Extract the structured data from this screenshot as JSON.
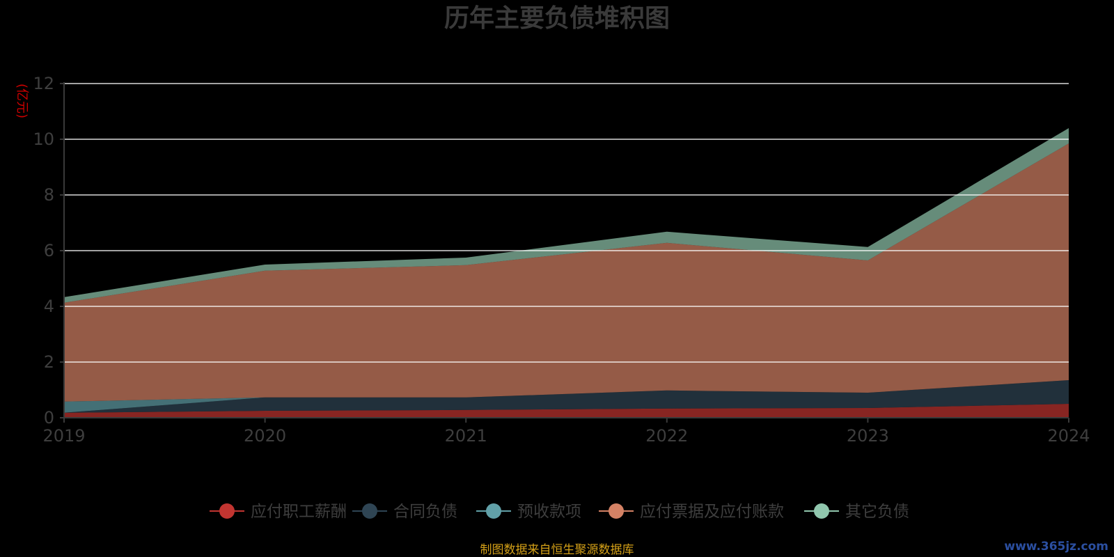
{
  "chart_data": {
    "type": "area",
    "stacked": true,
    "title": "历年主要负债堆积图",
    "unit_label": "(亿元)",
    "x": [
      "2019",
      "2020",
      "2021",
      "2022",
      "2023",
      "2024"
    ],
    "ylim": [
      0,
      12
    ],
    "yticks": [
      "0",
      "2",
      "4",
      "6",
      "8",
      "10",
      "12"
    ],
    "grid": true,
    "legend_position": "bottom",
    "series": [
      {
        "name": "应付职工薪酬",
        "color": "#c23531",
        "values": [
          0.18,
          0.25,
          0.28,
          0.33,
          0.35,
          0.5
        ]
      },
      {
        "name": "合同负债",
        "color": "#2f4554",
        "values": [
          0.0,
          0.48,
          0.45,
          0.65,
          0.55,
          0.85
        ]
      },
      {
        "name": "预收款项",
        "color": "#61a0a8",
        "values": [
          0.4,
          0.0,
          0.0,
          0.0,
          0.0,
          0.0
        ]
      },
      {
        "name": "应付票据及应付账款",
        "color": "#d48265",
        "values": [
          3.55,
          4.55,
          4.75,
          5.3,
          4.75,
          8.5
        ]
      },
      {
        "name": "其它负债",
        "color": "#91c7ae",
        "values": [
          0.2,
          0.22,
          0.27,
          0.4,
          0.48,
          0.55
        ]
      }
    ],
    "source_note": "制图数据来自恒生聚源数据库",
    "watermark": "www.365jz.com"
  }
}
